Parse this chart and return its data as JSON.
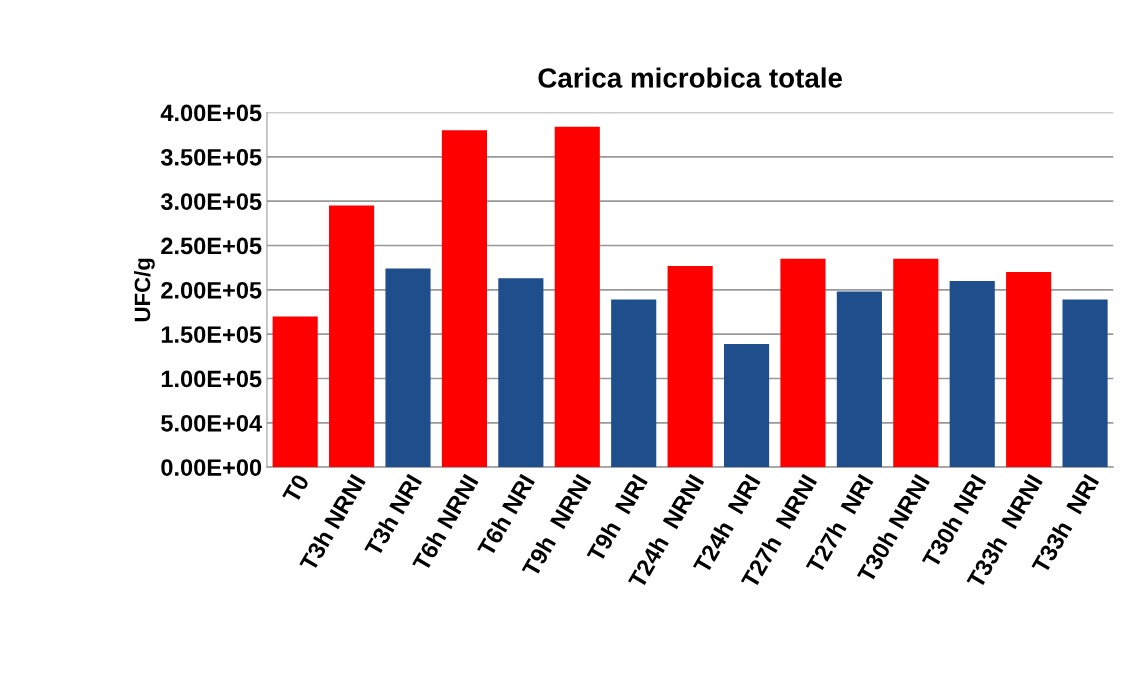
{
  "chart_data": {
    "type": "bar",
    "title": "Carica microbica totale",
    "ylabel": "UFC/g",
    "categories": [
      "T0",
      "T3h NRNI",
      "T3h NRI",
      "T6h NRNI",
      "T6h NRI",
      "T9h  NRNI",
      "T9h  NRI",
      "T24h  NRNI",
      "T24h  NRI",
      "T27h  NRNI",
      "T27h  NRI",
      "T30h NRNI",
      "T30h NRI",
      "T33h  NRNI",
      "T33h  NRI"
    ],
    "values": [
      170000,
      295000,
      224000,
      380000,
      213000,
      384000,
      189000,
      227000,
      139000,
      235000,
      198000,
      235000,
      210000,
      220000,
      189000
    ],
    "colors": [
      "#ff0000",
      "#ff0000",
      "#1f4e8c",
      "#ff0000",
      "#1f4e8c",
      "#ff0000",
      "#1f4e8c",
      "#ff0000",
      "#1f4e8c",
      "#ff0000",
      "#1f4e8c",
      "#ff0000",
      "#1f4e8c",
      "#ff0000",
      "#1f4e8c"
    ],
    "ylim": [
      0,
      400000
    ],
    "yticks": [
      {
        "value": 0,
        "label": "0.00E+00"
      },
      {
        "value": 50000,
        "label": "5.00E+04"
      },
      {
        "value": 100000,
        "label": "1.00E+05"
      },
      {
        "value": 150000,
        "label": "1.50E+05"
      },
      {
        "value": 200000,
        "label": "2.00E+05"
      },
      {
        "value": 250000,
        "label": "2.50E+05"
      },
      {
        "value": 300000,
        "label": "3.00E+05"
      },
      {
        "value": 350000,
        "label": "3.50E+05"
      },
      {
        "value": 400000,
        "label": "4.00E+05"
      }
    ],
    "grid": "y"
  }
}
